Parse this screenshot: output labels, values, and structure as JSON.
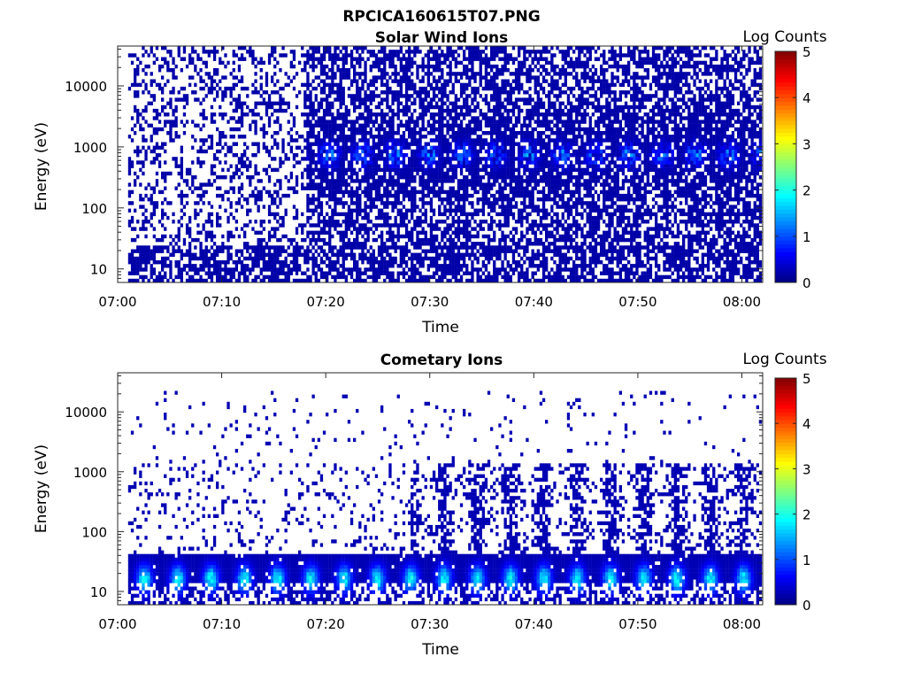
{
  "figure": {
    "title": "RPCICA160615T07.PNG"
  },
  "chart_data": [
    {
      "type": "heatmap",
      "title": "Solar Wind Ions",
      "xlabel": "Time",
      "ylabel": "Energy (eV)",
      "x_range": [
        "07:00",
        "08:02"
      ],
      "y_scale": "log",
      "y_range": [
        6,
        45000
      ],
      "x_ticks": [
        "07:00",
        "07:10",
        "07:20",
        "07:30",
        "07:40",
        "07:50",
        "08:00"
      ],
      "y_ticks": [
        "10",
        "100",
        "1000",
        "10000"
      ],
      "colorbar": {
        "label": "Log Counts",
        "range": [
          0,
          5
        ],
        "ticks": [
          "0",
          "1",
          "2",
          "3",
          "4",
          "5"
        ],
        "colormap": "jet"
      },
      "data_start": "07:01",
      "sparse_until": "07:18",
      "typical_peak_energy_eV": 700,
      "peak_log_counts": 1.4
    },
    {
      "type": "heatmap",
      "title": "Cometary Ions",
      "xlabel": "Time",
      "ylabel": "Energy (eV)",
      "x_range": [
        "07:00",
        "08:02"
      ],
      "y_scale": "log",
      "y_range": [
        6,
        45000
      ],
      "x_ticks": [
        "07:00",
        "07:10",
        "07:20",
        "07:30",
        "07:40",
        "07:50",
        "08:00"
      ],
      "y_ticks": [
        "10",
        "100",
        "1000",
        "10000"
      ],
      "colorbar": {
        "label": "Log Counts",
        "range": [
          0,
          5
        ],
        "ticks": [
          "0",
          "1",
          "2",
          "3",
          "4",
          "5"
        ],
        "colormap": "jet"
      },
      "data_start": "07:01",
      "typical_peak_energy_eV": 15,
      "pulse_period_min": 3.2,
      "peak_log_counts": 1.9
    }
  ]
}
